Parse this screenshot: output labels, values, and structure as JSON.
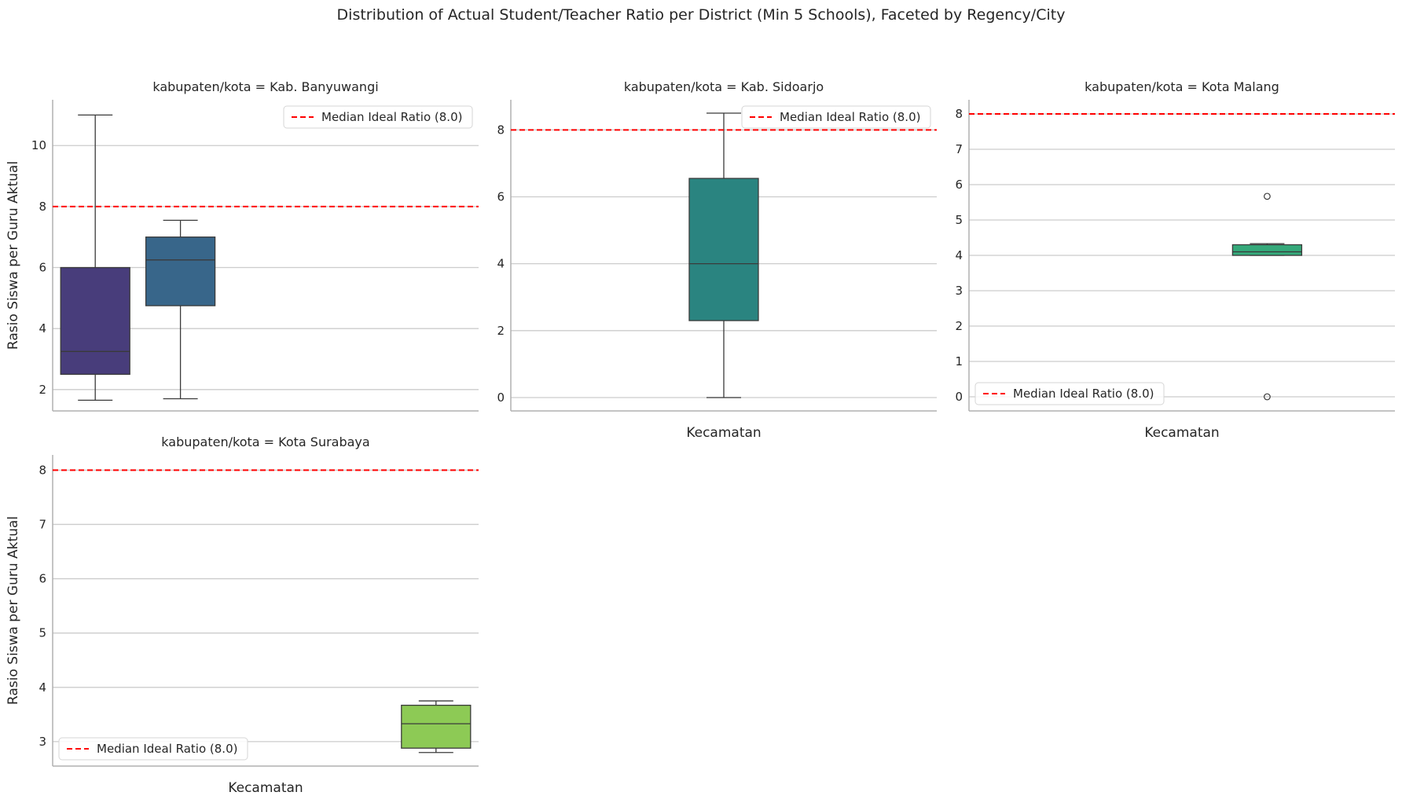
{
  "figure_title": "Distribution of Actual Student/Teacher Ratio per District (Min 5 Schools), Faceted by Regency/City",
  "colors": {
    "grid": "#cccccc",
    "spine": "#b0b0b0",
    "whisker": "#3a3a3a",
    "refline": "#ff0000",
    "text": "#262626"
  },
  "chart_data": [
    {
      "type": "box",
      "title": "kabupaten/kota = Kab. Banyuwangi",
      "ylabel": "Rasio Siswa per Guru Aktual",
      "xlabel": "",
      "ylim": [
        1.3,
        11.5
      ],
      "yticks": [
        2,
        4,
        6,
        8,
        10
      ],
      "grid": true,
      "legend_position": "upper-right",
      "reference_line": {
        "value": 8.0,
        "label": "Median Ideal Ratio (8.0)"
      },
      "boxes": [
        {
          "slot": 0,
          "whisker_low": 1.65,
          "q1": 2.5,
          "median": 3.25,
          "q3": 6.0,
          "whisker_high": 11.0,
          "outliers": [],
          "color": "#483d7b"
        },
        {
          "slot": 1,
          "whisker_low": 1.7,
          "q1": 4.75,
          "median": 6.25,
          "q3": 7.0,
          "whisker_high": 7.55,
          "outliers": [],
          "color": "#38668a"
        }
      ]
    },
    {
      "type": "box",
      "title": "kabupaten/kota = Kab. Sidoarjo",
      "ylabel": "",
      "xlabel": "Kecamatan",
      "ylim": [
        -0.4,
        8.9
      ],
      "yticks": [
        0,
        2,
        4,
        6,
        8
      ],
      "grid": true,
      "legend_position": "upper-right",
      "reference_line": {
        "value": 8.0,
        "label": "Median Ideal Ratio (8.0)"
      },
      "boxes": [
        {
          "slot": 2,
          "whisker_low": 0.0,
          "q1": 2.3,
          "median": 4.0,
          "q3": 6.55,
          "whisker_high": 8.5,
          "outliers": [],
          "color": "#2a8480"
        }
      ]
    },
    {
      "type": "box",
      "title": "kabupaten/kota = Kota Malang",
      "ylabel": "",
      "xlabel": "Kecamatan",
      "ylim": [
        -0.4,
        8.4
      ],
      "yticks": [
        0,
        1,
        2,
        3,
        4,
        5,
        6,
        7,
        8
      ],
      "grid": true,
      "legend_position": "lower-left",
      "reference_line": {
        "value": 8.0,
        "label": "Median Ideal Ratio (8.0)"
      },
      "boxes": [
        {
          "slot": 3,
          "whisker_low": 4.0,
          "q1": 4.0,
          "median": 4.1,
          "q3": 4.3,
          "whisker_high": 4.33,
          "outliers": [
            5.67,
            0.0
          ],
          "color": "#35a97a"
        }
      ]
    },
    {
      "type": "box",
      "title": "kabupaten/kota = Kota Surabaya",
      "ylabel": "Rasio Siswa per Guru Aktual",
      "xlabel": "Kecamatan",
      "ylim": [
        2.55,
        8.28
      ],
      "yticks": [
        3,
        4,
        5,
        6,
        7,
        8
      ],
      "grid": true,
      "legend_position": "lower-left",
      "reference_line": {
        "value": 8.0,
        "label": "Median Ideal Ratio (8.0)"
      },
      "boxes": [
        {
          "slot": 4,
          "whisker_low": 2.8,
          "q1": 2.88,
          "median": 3.33,
          "q3": 3.67,
          "whisker_high": 3.75,
          "outliers": [],
          "color": "#8dca55"
        }
      ]
    }
  ]
}
